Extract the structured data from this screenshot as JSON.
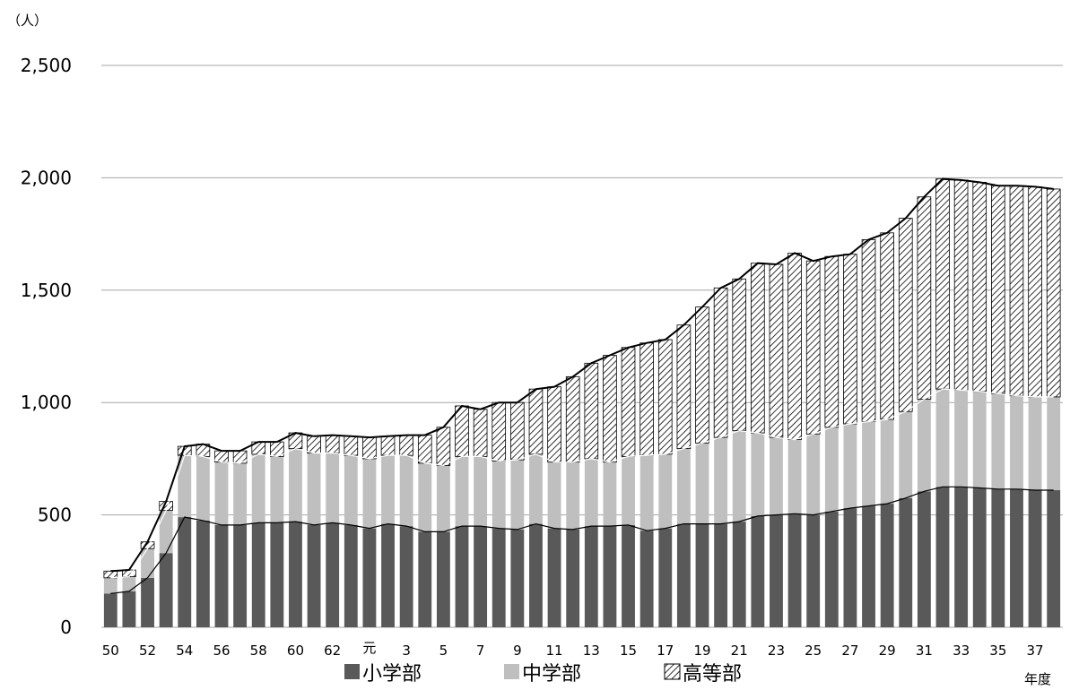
{
  "chart_data": {
    "type": "bar",
    "stacked": true,
    "y_unit": "（人）",
    "xlabel": "年度",
    "ylim": [
      0,
      2500
    ],
    "yticks": [
      "0",
      "500",
      "1,000",
      "1,500",
      "2,000",
      "2,500"
    ],
    "ytick_values": [
      0,
      500,
      1000,
      1500,
      2000,
      2500
    ],
    "grid": true,
    "legend_position": "bottom",
    "categories": [
      "50",
      "51",
      "52",
      "53",
      "54",
      "55",
      "56",
      "57",
      "58",
      "59",
      "60",
      "61",
      "62",
      "63",
      "元",
      "2",
      "3",
      "4",
      "5",
      "6",
      "7",
      "8",
      "9",
      "10",
      "11",
      "12",
      "13",
      "14",
      "15",
      "16",
      "17",
      "18",
      "19",
      "20",
      "21",
      "22",
      "23",
      "24",
      "25",
      "26",
      "27",
      "28",
      "29",
      "30",
      "31",
      "32",
      "33",
      "34",
      "35",
      "36",
      "37",
      "38"
    ],
    "xtick_labels": [
      "50",
      "52",
      "54",
      "56",
      "58",
      "60",
      "62",
      "元",
      "3",
      "5",
      "7",
      "9",
      "11",
      "13",
      "15",
      "17",
      "19",
      "21",
      "23",
      "25",
      "27",
      "29",
      "31",
      "33",
      "35",
      "37"
    ],
    "series": [
      {
        "name": "小学部",
        "color": "#595959",
        "values": [
          150,
          160,
          220,
          330,
          490,
          475,
          455,
          455,
          465,
          465,
          470,
          455,
          465,
          455,
          440,
          460,
          450,
          425,
          425,
          450,
          450,
          440,
          435,
          460,
          440,
          435,
          450,
          450,
          455,
          430,
          440,
          460,
          460,
          460,
          470,
          495,
          500,
          505,
          500,
          515,
          530,
          540,
          550,
          575,
          605,
          625,
          625,
          620,
          615,
          615,
          610,
          610
        ]
      },
      {
        "name": "中学部",
        "color": "#bfbfbf",
        "values": [
          70,
          65,
          130,
          190,
          275,
          285,
          280,
          275,
          305,
          295,
          325,
          320,
          310,
          310,
          310,
          305,
          315,
          305,
          295,
          310,
          310,
          300,
          310,
          310,
          295,
          300,
          300,
          285,
          305,
          335,
          330,
          335,
          360,
          385,
          405,
          370,
          345,
          330,
          360,
          375,
          375,
          375,
          375,
          385,
          410,
          435,
          430,
          430,
          425,
          415,
          415,
          415
        ]
      },
      {
        "name": "高等部",
        "color": "#ffffff",
        "pattern": "diagonal-hatch",
        "values": [
          30,
          30,
          30,
          40,
          40,
          55,
          50,
          55,
          55,
          65,
          70,
          75,
          80,
          85,
          95,
          85,
          90,
          125,
          170,
          225,
          210,
          260,
          255,
          290,
          335,
          380,
          425,
          475,
          485,
          500,
          510,
          550,
          605,
          665,
          675,
          755,
          770,
          830,
          770,
          760,
          755,
          810,
          830,
          860,
          900,
          935,
          935,
          930,
          925,
          935,
          935,
          925
        ]
      }
    ]
  }
}
